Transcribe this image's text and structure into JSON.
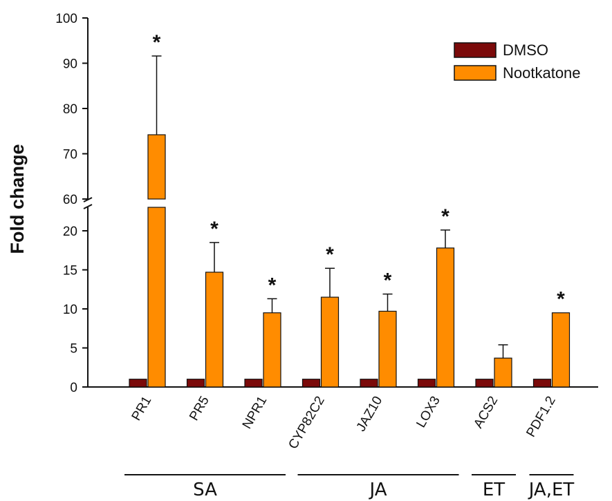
{
  "chart_data": {
    "type": "bar",
    "ylabel": "Fold change",
    "categories": [
      "PR1",
      "PR5",
      "NPR1",
      "CYP82C2",
      "JAZ10",
      "LOX3",
      "ACS2",
      "PDF1.2"
    ],
    "series": [
      {
        "name": "DMSO",
        "color": "#7b0a0a",
        "values": [
          1,
          1,
          1,
          1,
          1,
          1,
          1,
          1
        ]
      },
      {
        "name": "Nootkatone",
        "color": "#ff8c00",
        "values": [
          74.2,
          14.7,
          9.5,
          11.5,
          9.7,
          17.8,
          3.7,
          9.5
        ],
        "errors": [
          17.4,
          3.8,
          1.8,
          3.7,
          2.2,
          2.3,
          1.7,
          0
        ]
      }
    ],
    "significance": [
      "*",
      "*",
      "*",
      "*",
      "*",
      "*",
      "",
      "*"
    ],
    "y_axis_break": {
      "lower_range": [
        0,
        23
      ],
      "upper_range": [
        60,
        100
      ],
      "lower_ticks": [
        "0",
        "5",
        "10",
        "15",
        "20"
      ],
      "upper_ticks": [
        "60",
        "70",
        "80",
        "90",
        "100"
      ]
    },
    "groups": [
      {
        "label": "SA",
        "categories": [
          "PR1",
          "PR5",
          "NPR1"
        ]
      },
      {
        "label": "JA",
        "categories": [
          "CYP82C2",
          "JAZ10",
          "LOX3"
        ]
      },
      {
        "label": "ET",
        "categories": [
          "ACS2"
        ]
      },
      {
        "label": "JA,ET",
        "categories": [
          "PDF1.2"
        ]
      }
    ],
    "legend_position": "top-right",
    "grid": false
  }
}
